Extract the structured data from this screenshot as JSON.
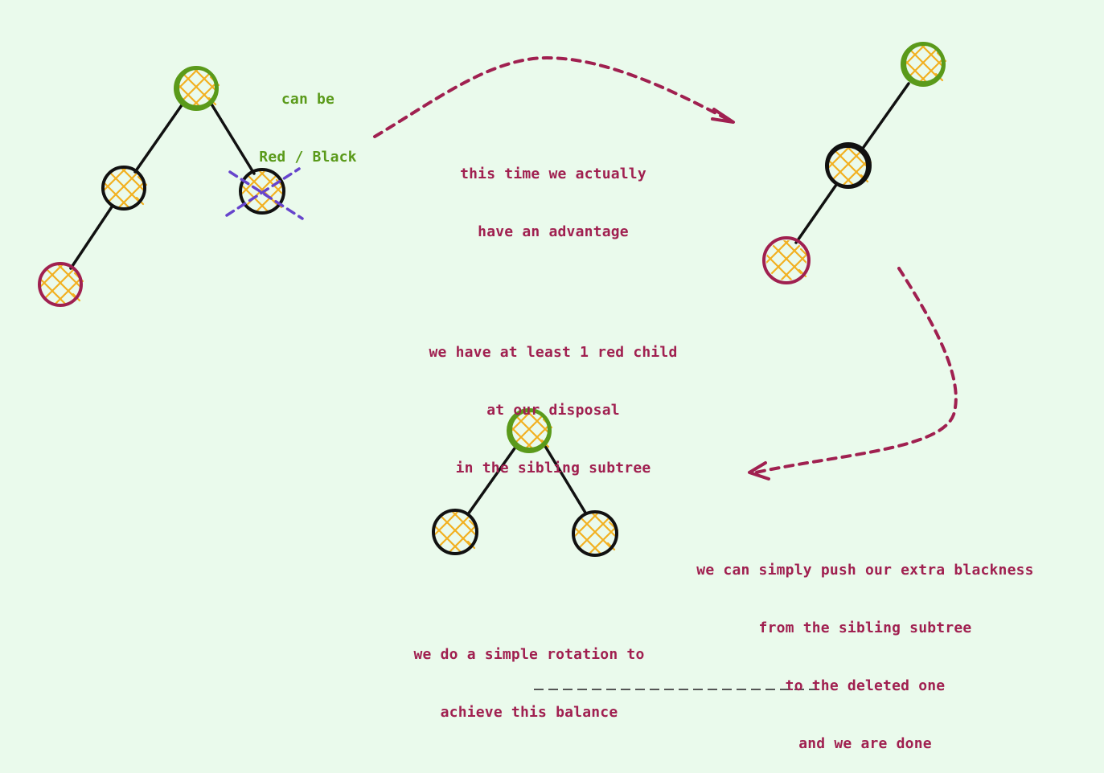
{
  "colors": {
    "background": "#eafaec",
    "green_node": "#5a9a1a",
    "black_node": "#111111",
    "red_node": "#a02050",
    "fill_hatch": "#f2b020",
    "cross": "#6644cc",
    "annotation_text": "#a02050"
  },
  "annotations": {
    "can_be": {
      "line1": "can be",
      "line2": "Red / Black"
    },
    "advantage": {
      "line1": "this time we actually",
      "line2": "have an advantage",
      "line3": "we have at least 1 red child",
      "line4": "at our disposal",
      "line5": "in the sibling subtree"
    },
    "push": {
      "line1": "we can simply push our extra blackness",
      "line2": "from the sibling subtree",
      "line3": "to the deleted one",
      "line4": "and we are done"
    },
    "rotation": {
      "line1": "we do a simple rotation to",
      "line2": "achieve this balance"
    }
  },
  "trees": [
    {
      "name": "before-deletion",
      "nodes": [
        {
          "id": "parent",
          "color": "green"
        },
        {
          "id": "sibling",
          "color": "black"
        },
        {
          "id": "deleted",
          "color": "black",
          "crossed_out": true
        },
        {
          "id": "red-nephew",
          "color": "red"
        }
      ]
    },
    {
      "name": "chain",
      "nodes": [
        {
          "id": "parent",
          "color": "green"
        },
        {
          "id": "sibling",
          "color": "black"
        },
        {
          "id": "red-nephew",
          "color": "red"
        }
      ]
    },
    {
      "name": "after-rotation",
      "nodes": [
        {
          "id": "root",
          "color": "green"
        },
        {
          "id": "left",
          "color": "black"
        },
        {
          "id": "right",
          "color": "black"
        }
      ]
    }
  ]
}
